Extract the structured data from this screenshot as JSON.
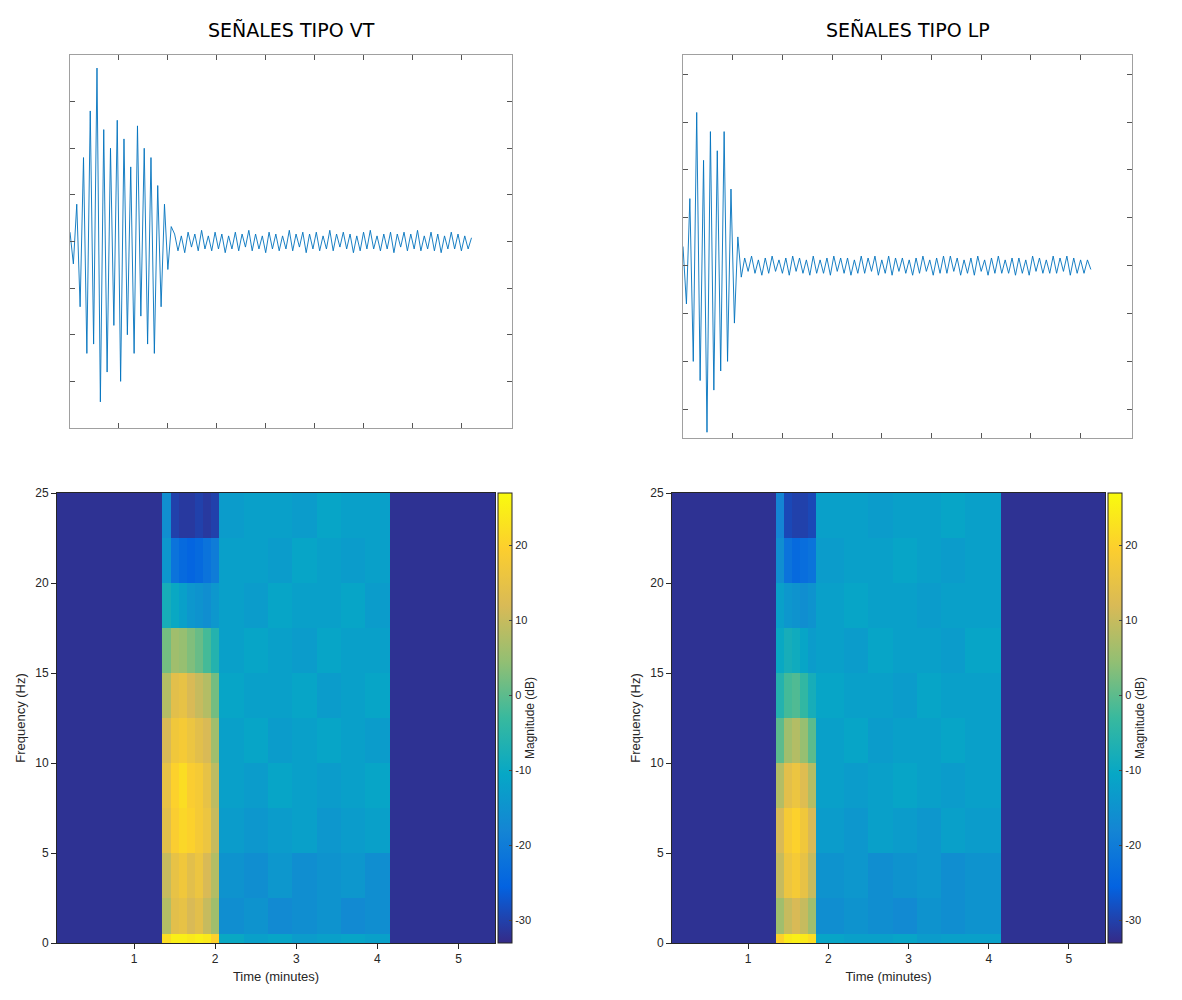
{
  "chart_data": [
    {
      "type": "line",
      "title": "SEÑALES TIPO VT",
      "color": "#0072bd",
      "tick_labels": false,
      "xlim": [
        0,
        131
      ],
      "ylim": [
        -1,
        1
      ],
      "xticks": [
        14.5,
        29,
        43.5,
        58,
        72.5,
        87,
        101.5,
        116
      ],
      "yticks": [
        -0.75,
        -0.5,
        -0.25,
        0,
        0.25,
        0.5,
        0.75
      ],
      "values": [
        0.05,
        -0.12,
        0.2,
        -0.35,
        0.45,
        -0.6,
        0.7,
        -0.55,
        0.93,
        -0.86,
        0.6,
        -0.7,
        0.5,
        -0.45,
        0.65,
        -0.75,
        0.55,
        -0.5,
        0.4,
        -0.6,
        0.62,
        -0.4,
        0.5,
        -0.55,
        0.45,
        -0.6,
        0.3,
        -0.35,
        0.2,
        -0.15,
        0.08,
        0.04,
        -0.05,
        0.03,
        -0.06,
        0.05,
        -0.03,
        0.04,
        -0.05,
        0.06,
        -0.04,
        0.03,
        -0.05,
        0.05,
        -0.04,
        0.04,
        -0.06,
        0.03,
        -0.04,
        0.05,
        -0.05,
        0.04,
        -0.03,
        0.06,
        -0.05,
        0.04,
        -0.04,
        0.03,
        -0.06,
        0.05,
        -0.04,
        0.04,
        -0.05,
        0.03,
        -0.04,
        0.06,
        -0.05,
        0.04,
        -0.03,
        0.05,
        -0.06,
        0.04,
        -0.04,
        0.05,
        -0.05,
        0.03,
        -0.04,
        0.06,
        -0.05,
        0.04,
        -0.03,
        0.05,
        -0.04,
        0.04,
        -0.06,
        0.03,
        -0.05,
        0.05,
        -0.04,
        0.06,
        -0.04,
        0.03,
        -0.05,
        0.04,
        -0.04,
        0.05,
        -0.06,
        0.04,
        -0.03,
        0.05,
        -0.05,
        0.04,
        -0.04,
        0.06,
        -0.05,
        0.03,
        -0.04,
        0.05,
        -0.05,
        0.04,
        -0.06,
        0.03,
        -0.04,
        0.05,
        -0.04,
        0.04,
        -0.05,
        0.03,
        -0.04,
        0.02
      ]
    },
    {
      "type": "line",
      "title": "SEÑALES TIPO LP",
      "color": "#0072bd",
      "tick_labels": false,
      "xlim": [
        0,
        131
      ],
      "ylim": [
        -0.9,
        1.1
      ],
      "xticks": [
        14.5,
        29,
        43.5,
        58,
        72.5,
        87,
        101.5,
        116
      ],
      "yticks": [
        -0.75,
        -0.5,
        -0.25,
        0,
        0.25,
        0.5,
        0.75,
        1
      ],
      "values": [
        0.1,
        -0.2,
        0.35,
        -0.5,
        0.8,
        -0.6,
        0.55,
        -0.87,
        0.7,
        -0.65,
        0.6,
        -0.55,
        0.7,
        -0.5,
        0.4,
        -0.3,
        0.15,
        -0.06,
        0.04,
        -0.03,
        0.05,
        -0.04,
        0.03,
        -0.05,
        0.04,
        -0.04,
        0.05,
        -0.03,
        0.03,
        -0.04,
        0.04,
        -0.05,
        0.05,
        -0.03,
        0.04,
        -0.04,
        0.03,
        -0.05,
        0.05,
        -0.04,
        0.03,
        -0.04,
        0.04,
        -0.05,
        0.05,
        -0.03,
        0.04,
        -0.04,
        0.04,
        -0.05,
        0.03,
        -0.04,
        0.05,
        -0.04,
        0.04,
        -0.03,
        0.05,
        -0.05,
        0.03,
        -0.04,
        0.05,
        -0.05,
        0.04,
        -0.03,
        0.04,
        -0.04,
        0.03,
        -0.05,
        0.04,
        -0.04,
        0.05,
        -0.03,
        0.03,
        -0.05,
        0.04,
        -0.04,
        0.05,
        -0.04,
        0.05,
        -0.03,
        0.04,
        -0.05,
        0.03,
        -0.04,
        0.04,
        -0.05,
        0.05,
        -0.03,
        0.03,
        -0.05,
        0.04,
        -0.04,
        0.05,
        -0.04,
        0.03,
        -0.04,
        0.04,
        -0.05,
        0.04,
        -0.04,
        0.03,
        -0.05,
        0.05,
        -0.03,
        0.04,
        -0.04,
        0.03,
        -0.04,
        0.05,
        -0.04,
        0.04,
        -0.03,
        0.05,
        -0.05,
        0.04,
        -0.04,
        0.03,
        -0.04,
        0.03,
        -0.02
      ]
    },
    {
      "type": "heatmap",
      "xlabel": "Time (minutes)",
      "ylabel": "Frequency (Hz)",
      "colorbar_title": "Magnitude (dB)",
      "xlim": [
        0.05,
        5.45
      ],
      "ylim": [
        0,
        25
      ],
      "xticks": [
        1,
        2,
        3,
        4,
        5
      ],
      "yticks": [
        0,
        5,
        10,
        15,
        20,
        25
      ],
      "zlim": [
        -33,
        27
      ],
      "zticks": [
        -30,
        -20,
        -10,
        0,
        10,
        20
      ],
      "x_edges": [
        0.05,
        1.35,
        1.45,
        1.55,
        1.65,
        1.75,
        1.85,
        1.95,
        2.05,
        2.35,
        2.65,
        2.95,
        3.25,
        3.55,
        3.85,
        4.15,
        5.45
      ],
      "y_edges": [
        0,
        0.5,
        2.5,
        5,
        7.5,
        10,
        12.5,
        15,
        17.5,
        20,
        22.5,
        25
      ],
      "cells": [
        [
          -32,
          22,
          25,
          25,
          24,
          25,
          24,
          20,
          -10,
          -12,
          -11,
          -13,
          -12,
          -11,
          -12,
          -32
        ],
        [
          -32,
          8,
          14,
          15,
          12,
          14,
          10,
          6,
          -16,
          -15,
          -17,
          -16,
          -15,
          -17,
          -16,
          -32
        ],
        [
          -32,
          10,
          15,
          17,
          14,
          16,
          12,
          8,
          -15,
          -16,
          -14,
          -16,
          -15,
          -14,
          -16,
          -32
        ],
        [
          -32,
          14,
          19,
          21,
          20,
          18,
          16,
          10,
          -13,
          -14,
          -13,
          -12,
          -14,
          -13,
          -12,
          -32
        ],
        [
          -32,
          15,
          20,
          22,
          19,
          18,
          15,
          9,
          -12,
          -13,
          -11,
          -12,
          -13,
          -12,
          -11,
          -32
        ],
        [
          -32,
          12,
          17,
          18,
          16,
          14,
          12,
          6,
          -12,
          -11,
          -13,
          -12,
          -11,
          -12,
          -13,
          -32
        ],
        [
          -32,
          8,
          14,
          15,
          12,
          10,
          8,
          2,
          -11,
          -12,
          -12,
          -11,
          -13,
          -12,
          -11,
          -32
        ],
        [
          -32,
          2,
          6,
          5,
          3,
          1,
          -2,
          -6,
          -12,
          -11,
          -12,
          -13,
          -11,
          -12,
          -12,
          -32
        ],
        [
          -32,
          -8,
          -10,
          -12,
          -14,
          -15,
          -16,
          -14,
          -12,
          -13,
          -11,
          -12,
          -12,
          -11,
          -13,
          -32
        ],
        [
          -32,
          -14,
          -22,
          -24,
          -25,
          -24,
          -22,
          -20,
          -12,
          -12,
          -13,
          -11,
          -12,
          -13,
          -12,
          -32
        ],
        [
          -32,
          -16,
          -30,
          -31,
          -31,
          -30,
          -31,
          -30,
          -13,
          -12,
          -12,
          -13,
          -11,
          -12,
          -12,
          -32
        ]
      ]
    },
    {
      "type": "heatmap",
      "xlabel": "Time (minutes)",
      "ylabel": "Frequency (Hz)",
      "colorbar_title": "Magnitude (dB)",
      "xlim": [
        0.05,
        5.45
      ],
      "ylim": [
        0,
        25
      ],
      "xticks": [
        1,
        2,
        3,
        4,
        5
      ],
      "yticks": [
        0,
        5,
        10,
        15,
        20,
        25
      ],
      "zlim": [
        -33,
        27
      ],
      "zticks": [
        -30,
        -20,
        -10,
        0,
        10,
        20
      ],
      "x_edges": [
        0.05,
        1.35,
        1.45,
        1.55,
        1.65,
        1.75,
        1.85,
        2.2,
        2.5,
        2.8,
        3.1,
        3.4,
        3.7,
        4.15,
        5.45
      ],
      "y_edges": [
        0,
        0.5,
        2.5,
        5,
        7.5,
        10,
        12.5,
        15,
        17.5,
        20,
        22.5,
        25
      ],
      "cells": [
        [
          -32,
          20,
          24,
          25,
          24,
          22,
          -11,
          -12,
          -12,
          -11,
          -13,
          -12,
          -12,
          -32
        ],
        [
          -32,
          6,
          10,
          12,
          10,
          6,
          -16,
          -15,
          -16,
          -17,
          -15,
          -16,
          -15,
          -32
        ],
        [
          -32,
          10,
          16,
          18,
          15,
          10,
          -15,
          -14,
          -16,
          -15,
          -14,
          -16,
          -15,
          -32
        ],
        [
          -32,
          12,
          18,
          20,
          17,
          12,
          -13,
          -14,
          -12,
          -13,
          -14,
          -12,
          -13,
          -32
        ],
        [
          -32,
          8,
          14,
          16,
          13,
          8,
          -12,
          -13,
          -12,
          -11,
          -12,
          -13,
          -12,
          -32
        ],
        [
          -32,
          0,
          6,
          8,
          5,
          0,
          -12,
          -11,
          -13,
          -12,
          -12,
          -11,
          -12,
          -32
        ],
        [
          -32,
          -6,
          -2,
          -1,
          -4,
          -8,
          -11,
          -12,
          -12,
          -13,
          -11,
          -12,
          -12,
          -32
        ],
        [
          -32,
          -10,
          -8,
          -9,
          -11,
          -13,
          -12,
          -13,
          -11,
          -12,
          -12,
          -13,
          -11,
          -32
        ],
        [
          -32,
          -12,
          -14,
          -15,
          -16,
          -15,
          -12,
          -11,
          -12,
          -12,
          -13,
          -12,
          -12,
          -32
        ],
        [
          -32,
          -16,
          -22,
          -24,
          -23,
          -22,
          -13,
          -12,
          -12,
          -11,
          -12,
          -13,
          -12,
          -32
        ],
        [
          -32,
          -18,
          -29,
          -30,
          -30,
          -29,
          -12,
          -12,
          -13,
          -12,
          -12,
          -11,
          -12,
          -32
        ]
      ]
    }
  ]
}
